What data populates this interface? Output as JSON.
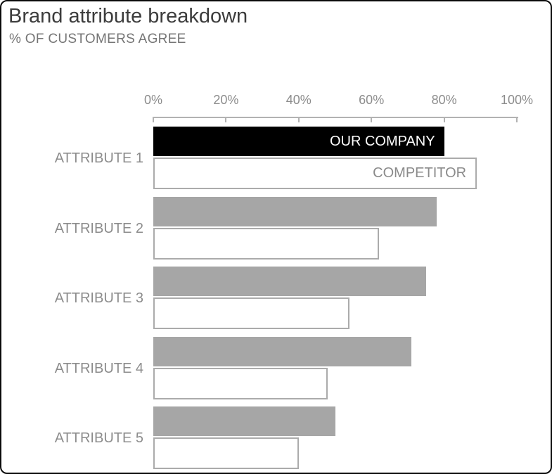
{
  "chart_data": {
    "type": "bar",
    "orientation": "horizontal",
    "title": "Brand attribute breakdown",
    "subtitle": "% OF CUSTOMERS AGREE",
    "unit": "%",
    "categories": [
      "ATTRIBUTE 1",
      "ATTRIBUTE 2",
      "ATTRIBUTE 3",
      "ATTRIBUTE 4",
      "ATTRIBUTE 5"
    ],
    "series": [
      {
        "name": "OUR COMPANY",
        "values": [
          80,
          78,
          75,
          71,
          50
        ]
      },
      {
        "name": "COMPETITOR",
        "values": [
          89,
          62,
          54,
          48,
          40
        ]
      }
    ],
    "x_ticks": [
      "0%",
      "20%",
      "40%",
      "60%",
      "80%",
      "100%"
    ],
    "xlim": [
      0,
      100
    ],
    "grid": false,
    "legend_position": "inside-first-bars",
    "highlight_row": 0,
    "colors": {
      "company_highlight": "#000000",
      "company_normal": "#a6a6a6",
      "competitor_fill": "#ffffff",
      "competitor_border": "#ababab",
      "company_label": "#ffffff",
      "competitor_label": "#8a8a8a",
      "axis": "#b2b2b2",
      "tick_label": "#8c8c8c",
      "category_label": "#8c8c8c",
      "title": "#3c3c3c",
      "subtitle": "#757575"
    }
  }
}
